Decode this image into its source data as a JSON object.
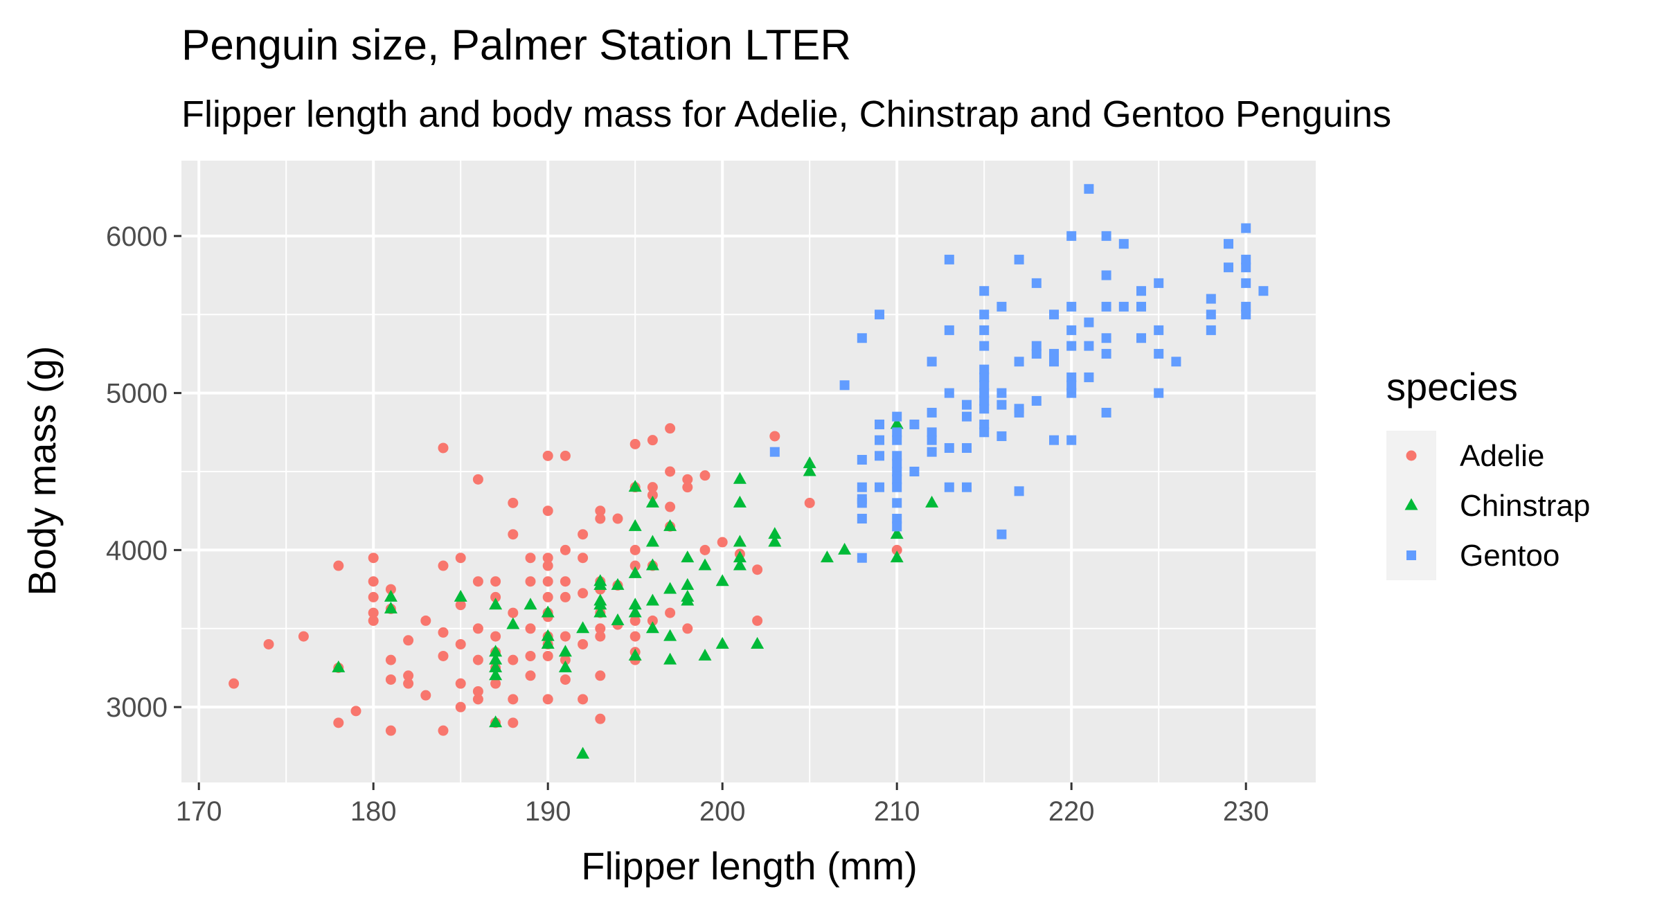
{
  "chart_data": {
    "type": "scatter",
    "title": "Penguin size, Palmer Station LTER",
    "subtitle": "Flipper length and body mass for Adelie, Chinstrap and Gentoo Penguins",
    "xlabel": "Flipper length (mm)",
    "ylabel": "Body mass (g)",
    "xlim": [
      169,
      234
    ],
    "ylim": [
      2520,
      6480
    ],
    "x_ticks": [
      170,
      180,
      190,
      200,
      210,
      220,
      230
    ],
    "y_ticks": [
      3000,
      4000,
      5000,
      6000
    ],
    "grid": true,
    "legend": {
      "title": "species",
      "position": "right"
    },
    "series": [
      {
        "name": "Adelie",
        "shape": "circle",
        "color": "#F8766D",
        "points": [
          [
            172,
            3150
          ],
          [
            174,
            3400
          ],
          [
            176,
            3450
          ],
          [
            178,
            3900
          ],
          [
            178,
            3250
          ],
          [
            178,
            2900
          ],
          [
            179,
            2975
          ],
          [
            180,
            3950
          ],
          [
            180,
            3800
          ],
          [
            180,
            3700
          ],
          [
            180,
            3600
          ],
          [
            180,
            3550
          ],
          [
            181,
            3750
          ],
          [
            181,
            3625
          ],
          [
            181,
            3300
          ],
          [
            181,
            3175
          ],
          [
            181,
            2850
          ],
          [
            182,
            3425
          ],
          [
            182,
            3200
          ],
          [
            182,
            3150
          ],
          [
            183,
            3550
          ],
          [
            183,
            3075
          ],
          [
            184,
            4650
          ],
          [
            184,
            3900
          ],
          [
            184,
            3475
          ],
          [
            184,
            3325
          ],
          [
            184,
            2850
          ],
          [
            185,
            3950
          ],
          [
            185,
            3650
          ],
          [
            185,
            3400
          ],
          [
            185,
            3150
          ],
          [
            185,
            3000
          ],
          [
            186,
            4450
          ],
          [
            186,
            3800
          ],
          [
            186,
            3500
          ],
          [
            186,
            3300
          ],
          [
            186,
            3100
          ],
          [
            186,
            3050
          ],
          [
            187,
            3800
          ],
          [
            187,
            3700
          ],
          [
            187,
            3450
          ],
          [
            187,
            3350
          ],
          [
            187,
            3250
          ],
          [
            187,
            3150
          ],
          [
            187,
            2900
          ],
          [
            188,
            4300
          ],
          [
            188,
            4100
          ],
          [
            188,
            3600
          ],
          [
            188,
            3300
          ],
          [
            188,
            3050
          ],
          [
            188,
            2900
          ],
          [
            189,
            3950
          ],
          [
            189,
            3800
          ],
          [
            189,
            3500
          ],
          [
            189,
            3325
          ],
          [
            189,
            3200
          ],
          [
            190,
            4600
          ],
          [
            190,
            4250
          ],
          [
            190,
            3950
          ],
          [
            190,
            3900
          ],
          [
            190,
            3800
          ],
          [
            190,
            3700
          ],
          [
            190,
            3600
          ],
          [
            190,
            3575
          ],
          [
            190,
            3450
          ],
          [
            190,
            3400
          ],
          [
            190,
            3325
          ],
          [
            190,
            3050
          ],
          [
            191,
            4600
          ],
          [
            191,
            4000
          ],
          [
            191,
            3800
          ],
          [
            191,
            3700
          ],
          [
            191,
            3450
          ],
          [
            191,
            3300
          ],
          [
            191,
            3175
          ],
          [
            192,
            4100
          ],
          [
            192,
            3950
          ],
          [
            192,
            3725
          ],
          [
            192,
            3400
          ],
          [
            192,
            3050
          ],
          [
            193,
            4250
          ],
          [
            193,
            4200
          ],
          [
            193,
            3800
          ],
          [
            193,
            3750
          ],
          [
            193,
            3600
          ],
          [
            193,
            3500
          ],
          [
            193,
            3450
          ],
          [
            193,
            3200
          ],
          [
            193,
            2925
          ],
          [
            194,
            4200
          ],
          [
            194,
            3775
          ],
          [
            194,
            3525
          ],
          [
            195,
            4675
          ],
          [
            195,
            4400
          ],
          [
            195,
            4000
          ],
          [
            195,
            3900
          ],
          [
            195,
            3550
          ],
          [
            195,
            3450
          ],
          [
            195,
            3350
          ],
          [
            195,
            3300
          ],
          [
            196,
            4700
          ],
          [
            196,
            4400
          ],
          [
            196,
            4350
          ],
          [
            196,
            3900
          ],
          [
            196,
            3550
          ],
          [
            197,
            4775
          ],
          [
            197,
            4500
          ],
          [
            197,
            4275
          ],
          [
            197,
            4150
          ],
          [
            197,
            3600
          ],
          [
            198,
            4450
          ],
          [
            198,
            4400
          ],
          [
            198,
            3500
          ],
          [
            199,
            4475
          ],
          [
            199,
            4000
          ],
          [
            200,
            4050
          ],
          [
            201,
            3975
          ],
          [
            202,
            3875
          ],
          [
            202,
            3550
          ],
          [
            203,
            4725
          ],
          [
            205,
            4300
          ],
          [
            210,
            4000
          ]
        ]
      },
      {
        "name": "Chinstrap",
        "shape": "triangle",
        "color": "#00BA38",
        "points": [
          [
            178,
            3250
          ],
          [
            181,
            3700
          ],
          [
            181,
            3625
          ],
          [
            185,
            3700
          ],
          [
            187,
            3650
          ],
          [
            187,
            3350
          ],
          [
            187,
            3300
          ],
          [
            187,
            3250
          ],
          [
            187,
            3200
          ],
          [
            187,
            2900
          ],
          [
            188,
            3525
          ],
          [
            189,
            3650
          ],
          [
            190,
            3600
          ],
          [
            190,
            3450
          ],
          [
            190,
            3400
          ],
          [
            191,
            3350
          ],
          [
            191,
            3250
          ],
          [
            192,
            3500
          ],
          [
            192,
            2700
          ],
          [
            193,
            3800
          ],
          [
            193,
            3775
          ],
          [
            193,
            3675
          ],
          [
            193,
            3650
          ],
          [
            193,
            3600
          ],
          [
            194,
            3775
          ],
          [
            194,
            3550
          ],
          [
            195,
            4400
          ],
          [
            195,
            4150
          ],
          [
            195,
            3850
          ],
          [
            195,
            3650
          ],
          [
            195,
            3600
          ],
          [
            195,
            3325
          ],
          [
            196,
            4300
          ],
          [
            196,
            4050
          ],
          [
            196,
            3900
          ],
          [
            196,
            3675
          ],
          [
            196,
            3500
          ],
          [
            197,
            4150
          ],
          [
            197,
            3750
          ],
          [
            197,
            3450
          ],
          [
            197,
            3300
          ],
          [
            198,
            3950
          ],
          [
            198,
            3775
          ],
          [
            198,
            3700
          ],
          [
            198,
            3675
          ],
          [
            199,
            3900
          ],
          [
            199,
            3325
          ],
          [
            200,
            3800
          ],
          [
            200,
            3400
          ],
          [
            201,
            4450
          ],
          [
            201,
            4300
          ],
          [
            201,
            4050
          ],
          [
            201,
            3950
          ],
          [
            201,
            3900
          ],
          [
            202,
            3400
          ],
          [
            203,
            4100
          ],
          [
            203,
            4050
          ],
          [
            205,
            4550
          ],
          [
            205,
            4500
          ],
          [
            206,
            3950
          ],
          [
            207,
            4000
          ],
          [
            210,
            4800
          ],
          [
            210,
            4100
          ],
          [
            210,
            3950
          ],
          [
            212,
            4300
          ]
        ]
      },
      {
        "name": "Gentoo",
        "shape": "square",
        "color": "#619CFF",
        "points": [
          [
            203,
            4625
          ],
          [
            207,
            5050
          ],
          [
            208,
            5350
          ],
          [
            208,
            4575
          ],
          [
            208,
            4400
          ],
          [
            208,
            4325
          ],
          [
            208,
            4300
          ],
          [
            208,
            4200
          ],
          [
            208,
            3950
          ],
          [
            209,
            5500
          ],
          [
            209,
            4800
          ],
          [
            209,
            4700
          ],
          [
            209,
            4600
          ],
          [
            209,
            4400
          ],
          [
            210,
            4850
          ],
          [
            210,
            4750
          ],
          [
            210,
            4700
          ],
          [
            210,
            4600
          ],
          [
            210,
            4550
          ],
          [
            210,
            4500
          ],
          [
            210,
            4450
          ],
          [
            210,
            4400
          ],
          [
            210,
            4300
          ],
          [
            210,
            4200
          ],
          [
            210,
            4150
          ],
          [
            211,
            4800
          ],
          [
            211,
            4500
          ],
          [
            212,
            5200
          ],
          [
            212,
            4875
          ],
          [
            212,
            4750
          ],
          [
            212,
            4700
          ],
          [
            212,
            4625
          ],
          [
            213,
            5850
          ],
          [
            213,
            5400
          ],
          [
            213,
            5000
          ],
          [
            213,
            4650
          ],
          [
            213,
            4400
          ],
          [
            214,
            4925
          ],
          [
            214,
            4850
          ],
          [
            214,
            4650
          ],
          [
            214,
            4400
          ],
          [
            215,
            5650
          ],
          [
            215,
            5500
          ],
          [
            215,
            5400
          ],
          [
            215,
            5300
          ],
          [
            215,
            5150
          ],
          [
            215,
            5100
          ],
          [
            215,
            5050
          ],
          [
            215,
            5000
          ],
          [
            215,
            4950
          ],
          [
            215,
            4900
          ],
          [
            215,
            4800
          ],
          [
            215,
            4750
          ],
          [
            216,
            5550
          ],
          [
            216,
            5000
          ],
          [
            216,
            4925
          ],
          [
            216,
            4725
          ],
          [
            216,
            4100
          ],
          [
            217,
            5850
          ],
          [
            217,
            5200
          ],
          [
            217,
            4900
          ],
          [
            217,
            4875
          ],
          [
            217,
            4375
          ],
          [
            218,
            5700
          ],
          [
            218,
            5300
          ],
          [
            218,
            5250
          ],
          [
            218,
            4950
          ],
          [
            219,
            5500
          ],
          [
            219,
            5250
          ],
          [
            219,
            5200
          ],
          [
            219,
            4700
          ],
          [
            220,
            6000
          ],
          [
            220,
            5550
          ],
          [
            220,
            5400
          ],
          [
            220,
            5300
          ],
          [
            220,
            5100
          ],
          [
            220,
            5050
          ],
          [
            220,
            5000
          ],
          [
            220,
            4700
          ],
          [
            221,
            6300
          ],
          [
            221,
            5450
          ],
          [
            221,
            5300
          ],
          [
            221,
            5100
          ],
          [
            222,
            6000
          ],
          [
            222,
            5750
          ],
          [
            222,
            5550
          ],
          [
            222,
            5350
          ],
          [
            222,
            5250
          ],
          [
            222,
            4875
          ],
          [
            223,
            5950
          ],
          [
            223,
            5550
          ],
          [
            224,
            5650
          ],
          [
            224,
            5550
          ],
          [
            224,
            5350
          ],
          [
            225,
            5700
          ],
          [
            225,
            5400
          ],
          [
            225,
            5250
          ],
          [
            225,
            5000
          ],
          [
            226,
            5200
          ],
          [
            228,
            5600
          ],
          [
            228,
            5500
          ],
          [
            228,
            5400
          ],
          [
            229,
            5950
          ],
          [
            229,
            5800
          ],
          [
            230,
            6050
          ],
          [
            230,
            5850
          ],
          [
            230,
            5800
          ],
          [
            230,
            5700
          ],
          [
            230,
            5550
          ],
          [
            230,
            5500
          ],
          [
            231,
            5650
          ]
        ]
      }
    ]
  }
}
